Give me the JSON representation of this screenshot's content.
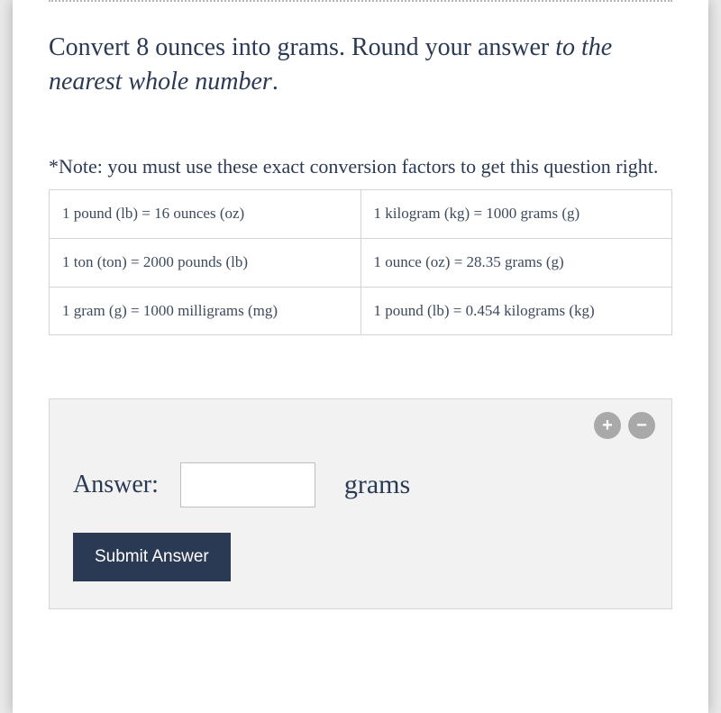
{
  "question": {
    "lead": "Convert 8 ounces into grams. Round your answer ",
    "italic": "to the nearest whole number",
    "tail": "."
  },
  "note": "*Note: you must use these exact conversion factors to get this question right.",
  "conversion_table": {
    "rows": [
      [
        "1 pound (lb) = 16 ounces (oz)",
        "1 kilogram (kg) = 1000 grams (g)"
      ],
      [
        "1 ton (ton) = 2000 pounds (lb)",
        "1 ounce (oz) = 28.35 grams (g)"
      ],
      [
        "1 gram (g) = 1000 milligrams (mg)",
        "1 pound (lb) = 0.454 kilograms (kg)"
      ]
    ]
  },
  "answer_panel": {
    "label": "Answer:",
    "input_value": "",
    "unit": "grams",
    "submit_label": "Submit Answer"
  },
  "icons": {
    "plus": "+",
    "minus": "−"
  },
  "styling": {
    "page_bg": "#e9e9e9",
    "card_bg": "#ffffff",
    "text_color": "#2b3a54",
    "table_border": "#d3d3d3",
    "answer_box_bg": "#f2f2f2",
    "answer_box_border": "#d6d6d6",
    "circle_btn_bg": "#a9a9a9",
    "submit_bg": "#2b3a54",
    "submit_fg": "#ffffff"
  }
}
